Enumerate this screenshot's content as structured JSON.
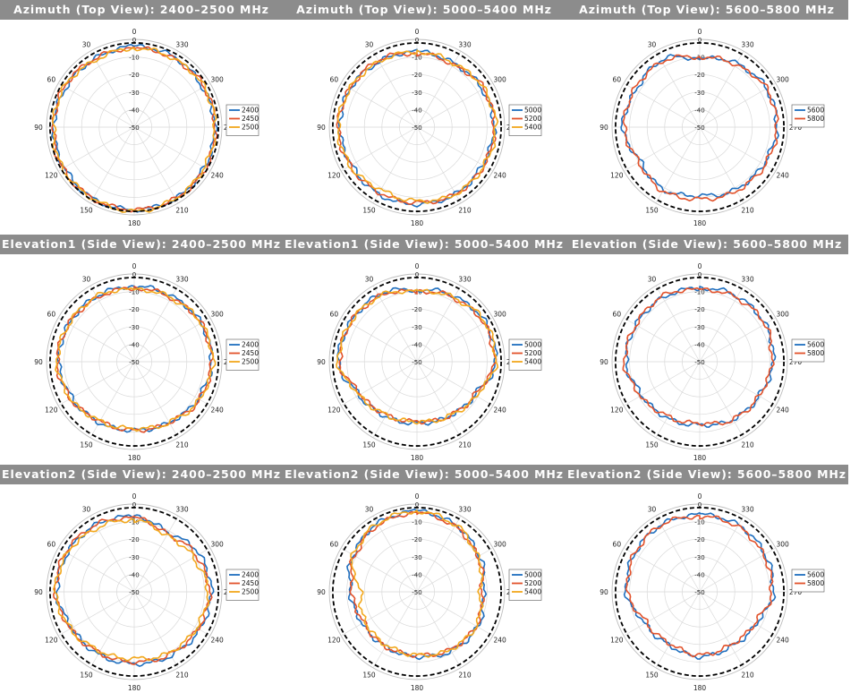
{
  "colors": {
    "title_bg": "#8c8c8c",
    "grid": "#d9d9d9",
    "reference": "#000000",
    "series_1": "#1f6fbf",
    "series_2": "#e2522b",
    "series_3": "#f2a81d"
  },
  "charts": [
    {
      "title": "Azimuth (Top View): 2400–2500 MHz"
    },
    {
      "title": "Azimuth (Top View): 5000–5400 MHz"
    },
    {
      "title": "Azimuth (Top View): 5600–5800 MHz"
    },
    {
      "title": "Elevation1 (Side View): 2400–2500 MHz"
    },
    {
      "title": "Elevation1 (Side View): 5000–5400 MHz"
    },
    {
      "title": "Elevation (Side View): 5600–5800 MHz"
    },
    {
      "title": "Elevation2 (Side View): 2400–2500 MHz"
    },
    {
      "title": "Elevation2 (Side View): 5000–5400 MHz"
    },
    {
      "title": "Elevation2 (Side View): 5600–5800 MHz"
    }
  ],
  "chart_data": [
    {
      "type": "polar",
      "title": "Azimuth (Top View): 2400–2500 MHz",
      "angle_ticks": [
        "0",
        "30",
        "60",
        "90",
        "120",
        "150",
        "180",
        "210",
        "240",
        "270",
        "300",
        "330"
      ],
      "radial_ticks": [
        "0",
        "-10",
        "-20",
        "-30",
        "-40",
        "-50"
      ],
      "rlim": [
        -50,
        0
      ],
      "grid": true,
      "legend_position": "right",
      "reference_circle_db": -2,
      "theta": [
        0,
        30,
        60,
        90,
        120,
        150,
        180,
        210,
        240,
        270,
        300,
        330
      ],
      "series": [
        {
          "name": "2400",
          "values": [
            -4,
            -5,
            -5,
            -4,
            -4,
            -3,
            -3,
            -3,
            -4,
            -4,
            -5,
            -4
          ]
        },
        {
          "name": "2450",
          "values": [
            -5,
            -5,
            -4,
            -4,
            -3,
            -3,
            -3,
            -3,
            -3,
            -4,
            -4,
            -5
          ]
        },
        {
          "name": "2500",
          "values": [
            -5,
            -6,
            -4,
            -4,
            -3,
            -3,
            -2,
            -3,
            -4,
            -4,
            -4,
            -5
          ]
        }
      ]
    },
    {
      "type": "polar",
      "title": "Azimuth (Top View): 5000–5400 MHz",
      "angle_ticks": [
        "0",
        "30",
        "60",
        "90",
        "120",
        "150",
        "180",
        "210",
        "240",
        "270",
        "300",
        "330"
      ],
      "radial_ticks": [
        "0",
        "-10",
        "-20",
        "-30",
        "-40",
        "-50"
      ],
      "rlim": [
        -50,
        0
      ],
      "grid": true,
      "legend_position": "right",
      "reference_circle_db": -2,
      "theta": [
        0,
        30,
        60,
        90,
        120,
        150,
        180,
        210,
        240,
        270,
        300,
        330
      ],
      "series": [
        {
          "name": "5000",
          "values": [
            -7,
            -7,
            -6,
            -6,
            -7,
            -6,
            -6,
            -6,
            -7,
            -6,
            -7,
            -8
          ]
        },
        {
          "name": "5200",
          "values": [
            -8,
            -6,
            -6,
            -5,
            -6,
            -7,
            -7,
            -6,
            -6,
            -6,
            -6,
            -9
          ]
        },
        {
          "name": "5400",
          "values": [
            -7,
            -7,
            -6,
            -5,
            -6,
            -9,
            -8,
            -6,
            -6,
            -5,
            -6,
            -8
          ]
        }
      ]
    },
    {
      "type": "polar",
      "title": "Azimuth (Top View): 5600–5800 MHz",
      "angle_ticks": [
        "0",
        "30",
        "60",
        "90",
        "120",
        "150",
        "180",
        "210",
        "240",
        "270",
        "300",
        "330"
      ],
      "radial_ticks": [
        "0",
        "-10",
        "-20",
        "-30",
        "-40",
        "-50"
      ],
      "rlim": [
        -50,
        0
      ],
      "grid": true,
      "legend_position": "right",
      "reference_circle_db": -2,
      "theta": [
        0,
        30,
        60,
        90,
        120,
        150,
        180,
        210,
        240,
        270,
        300,
        330
      ],
      "series": [
        {
          "name": "5600",
          "values": [
            -11,
            -6,
            -8,
            -6,
            -11,
            -9,
            -11,
            -9,
            -8,
            -6,
            -6,
            -8
          ]
        },
        {
          "name": "5800",
          "values": [
            -10,
            -7,
            -7,
            -7,
            -10,
            -8,
            -9,
            -8,
            -7,
            -6,
            -6,
            -9
          ]
        }
      ]
    },
    {
      "type": "polar",
      "title": "Elevation1 (Side View): 2400–2500 MHz",
      "angle_ticks": [
        "0",
        "30",
        "60",
        "90",
        "120",
        "150",
        "180",
        "210",
        "240",
        "270",
        "300",
        "330"
      ],
      "radial_ticks": [
        "0",
        "-10",
        "-20",
        "-30",
        "-40",
        "-50"
      ],
      "rlim": [
        -50,
        0
      ],
      "grid": true,
      "legend_position": "right",
      "reference_circle_db": -2,
      "theta": [
        0,
        30,
        60,
        90,
        120,
        150,
        180,
        210,
        240,
        270,
        300,
        330
      ],
      "series": [
        {
          "name": "2400",
          "values": [
            -7,
            -7,
            -7,
            -7,
            -9,
            -10,
            -11,
            -10,
            -8,
            -6,
            -6,
            -7
          ]
        },
        {
          "name": "2450",
          "values": [
            -8,
            -8,
            -7,
            -6,
            -8,
            -11,
            -11,
            -10,
            -7,
            -6,
            -6,
            -8
          ]
        },
        {
          "name": "2500",
          "values": [
            -9,
            -7,
            -7,
            -6,
            -8,
            -11,
            -12,
            -10,
            -7,
            -5,
            -6,
            -8
          ]
        }
      ]
    },
    {
      "type": "polar",
      "title": "Elevation1 (Side View): 5000–5400 MHz",
      "angle_ticks": [
        "0",
        "30",
        "60",
        "90",
        "120",
        "150",
        "180",
        "210",
        "240",
        "270",
        "300",
        "330"
      ],
      "radial_ticks": [
        "0",
        "-10",
        "-20",
        "-30",
        "-40",
        "-50"
      ],
      "rlim": [
        -50,
        0
      ],
      "grid": true,
      "legend_position": "right",
      "reference_circle_db": -2,
      "theta": [
        0,
        30,
        60,
        90,
        120,
        150,
        180,
        210,
        240,
        270,
        300,
        330
      ],
      "series": [
        {
          "name": "5000",
          "values": [
            -9,
            -6,
            -6,
            -5,
            -12,
            -14,
            -15,
            -14,
            -12,
            -5,
            -5,
            -7
          ]
        },
        {
          "name": "5200",
          "values": [
            -10,
            -7,
            -6,
            -6,
            -13,
            -15,
            -16,
            -14,
            -12,
            -6,
            -6,
            -8
          ]
        },
        {
          "name": "5400",
          "values": [
            -10,
            -7,
            -6,
            -5,
            -12,
            -15,
            -16,
            -14,
            -11,
            -5,
            -5,
            -8
          ]
        }
      ]
    },
    {
      "type": "polar",
      "title": "Elevation (Side View): 5600–5800 MHz",
      "angle_ticks": [
        "0",
        "30",
        "60",
        "90",
        "120",
        "150",
        "180",
        "210",
        "240",
        "270",
        "300",
        "330"
      ],
      "radial_ticks": [
        "0",
        "-10",
        "-20",
        "-30",
        "-40",
        "-50"
      ],
      "rlim": [
        -50,
        0
      ],
      "grid": true,
      "legend_position": "right",
      "reference_circle_db": -2,
      "theta": [
        0,
        30,
        60,
        90,
        120,
        150,
        180,
        210,
        240,
        270,
        300,
        330
      ],
      "series": [
        {
          "name": "5600",
          "values": [
            -8,
            -8,
            -8,
            -8,
            -12,
            -13,
            -14,
            -12,
            -11,
            -8,
            -7,
            -7
          ]
        },
        {
          "name": "5800",
          "values": [
            -9,
            -7,
            -8,
            -7,
            -11,
            -14,
            -15,
            -12,
            -11,
            -9,
            -7,
            -8
          ]
        }
      ]
    },
    {
      "type": "polar",
      "title": "Elevation2 (Side View): 2400–2500 MHz",
      "angle_ticks": [
        "0",
        "30",
        "60",
        "90",
        "120",
        "150",
        "180",
        "210",
        "240",
        "270",
        "300",
        "330"
      ],
      "radial_ticks": [
        "0",
        "-10",
        "-20",
        "-30",
        "-40",
        "-50"
      ],
      "rlim": [
        -50,
        0
      ],
      "grid": true,
      "legend_position": "right",
      "reference_circle_db": -2,
      "theta": [
        0,
        30,
        60,
        90,
        120,
        150,
        180,
        210,
        240,
        270,
        300,
        330
      ],
      "series": [
        {
          "name": "2400",
          "values": [
            -7,
            -6,
            -6,
            -6,
            -9,
            -9,
            -9,
            -8,
            -7,
            -6,
            -7,
            -11
          ]
        },
        {
          "name": "2450",
          "values": [
            -8,
            -6,
            -5,
            -5,
            -8,
            -10,
            -10,
            -9,
            -8,
            -7,
            -9,
            -12
          ]
        },
        {
          "name": "2500",
          "values": [
            -9,
            -8,
            -6,
            -5,
            -8,
            -11,
            -12,
            -10,
            -9,
            -8,
            -11,
            -13
          ]
        }
      ]
    },
    {
      "type": "polar",
      "title": "Elevation2 (Side View): 5000–5400 MHz",
      "angle_ticks": [
        "0",
        "30",
        "60",
        "90",
        "120",
        "150",
        "180",
        "210",
        "240",
        "270",
        "300",
        "330"
      ],
      "radial_ticks": [
        "0",
        "-10",
        "-20",
        "-30",
        "-40",
        "-50"
      ],
      "rlim": [
        -50,
        0
      ],
      "grid": true,
      "legend_position": "right",
      "reference_circle_db": -2,
      "theta": [
        0,
        30,
        60,
        90,
        120,
        150,
        180,
        210,
        240,
        270,
        300,
        330
      ],
      "series": [
        {
          "name": "5000",
          "values": [
            -4,
            -5,
            -8,
            -12,
            -14,
            -14,
            -13,
            -11,
            -10,
            -12,
            -9,
            -6
          ]
        },
        {
          "name": "5200",
          "values": [
            -5,
            -6,
            -9,
            -13,
            -15,
            -14,
            -14,
            -12,
            -11,
            -13,
            -10,
            -7
          ]
        },
        {
          "name": "5400",
          "values": [
            -4,
            -5,
            -8,
            -18,
            -16,
            -15,
            -14,
            -12,
            -11,
            -14,
            -10,
            -6
          ]
        }
      ]
    },
    {
      "type": "polar",
      "title": "Elevation2 (Side View): 5600–5800 MHz",
      "angle_ticks": [
        "0",
        "30",
        "60",
        "90",
        "120",
        "150",
        "180",
        "210",
        "240",
        "270",
        "300",
        "330"
      ],
      "radial_ticks": [
        "0",
        "-10",
        "-20",
        "-30",
        "-40",
        "-50"
      ],
      "rlim": [
        -50,
        0
      ],
      "grid": true,
      "legend_position": "right",
      "reference_circle_db": -2,
      "theta": [
        0,
        30,
        60,
        90,
        120,
        150,
        180,
        210,
        240,
        270,
        300,
        330
      ],
      "series": [
        {
          "name": "5600",
          "values": [
            -6,
            -6,
            -7,
            -8,
            -14,
            -15,
            -13,
            -14,
            -13,
            -8,
            -7,
            -6
          ]
        },
        {
          "name": "5800",
          "values": [
            -7,
            -6,
            -7,
            -9,
            -15,
            -16,
            -14,
            -15,
            -14,
            -9,
            -8,
            -7
          ]
        }
      ]
    }
  ]
}
